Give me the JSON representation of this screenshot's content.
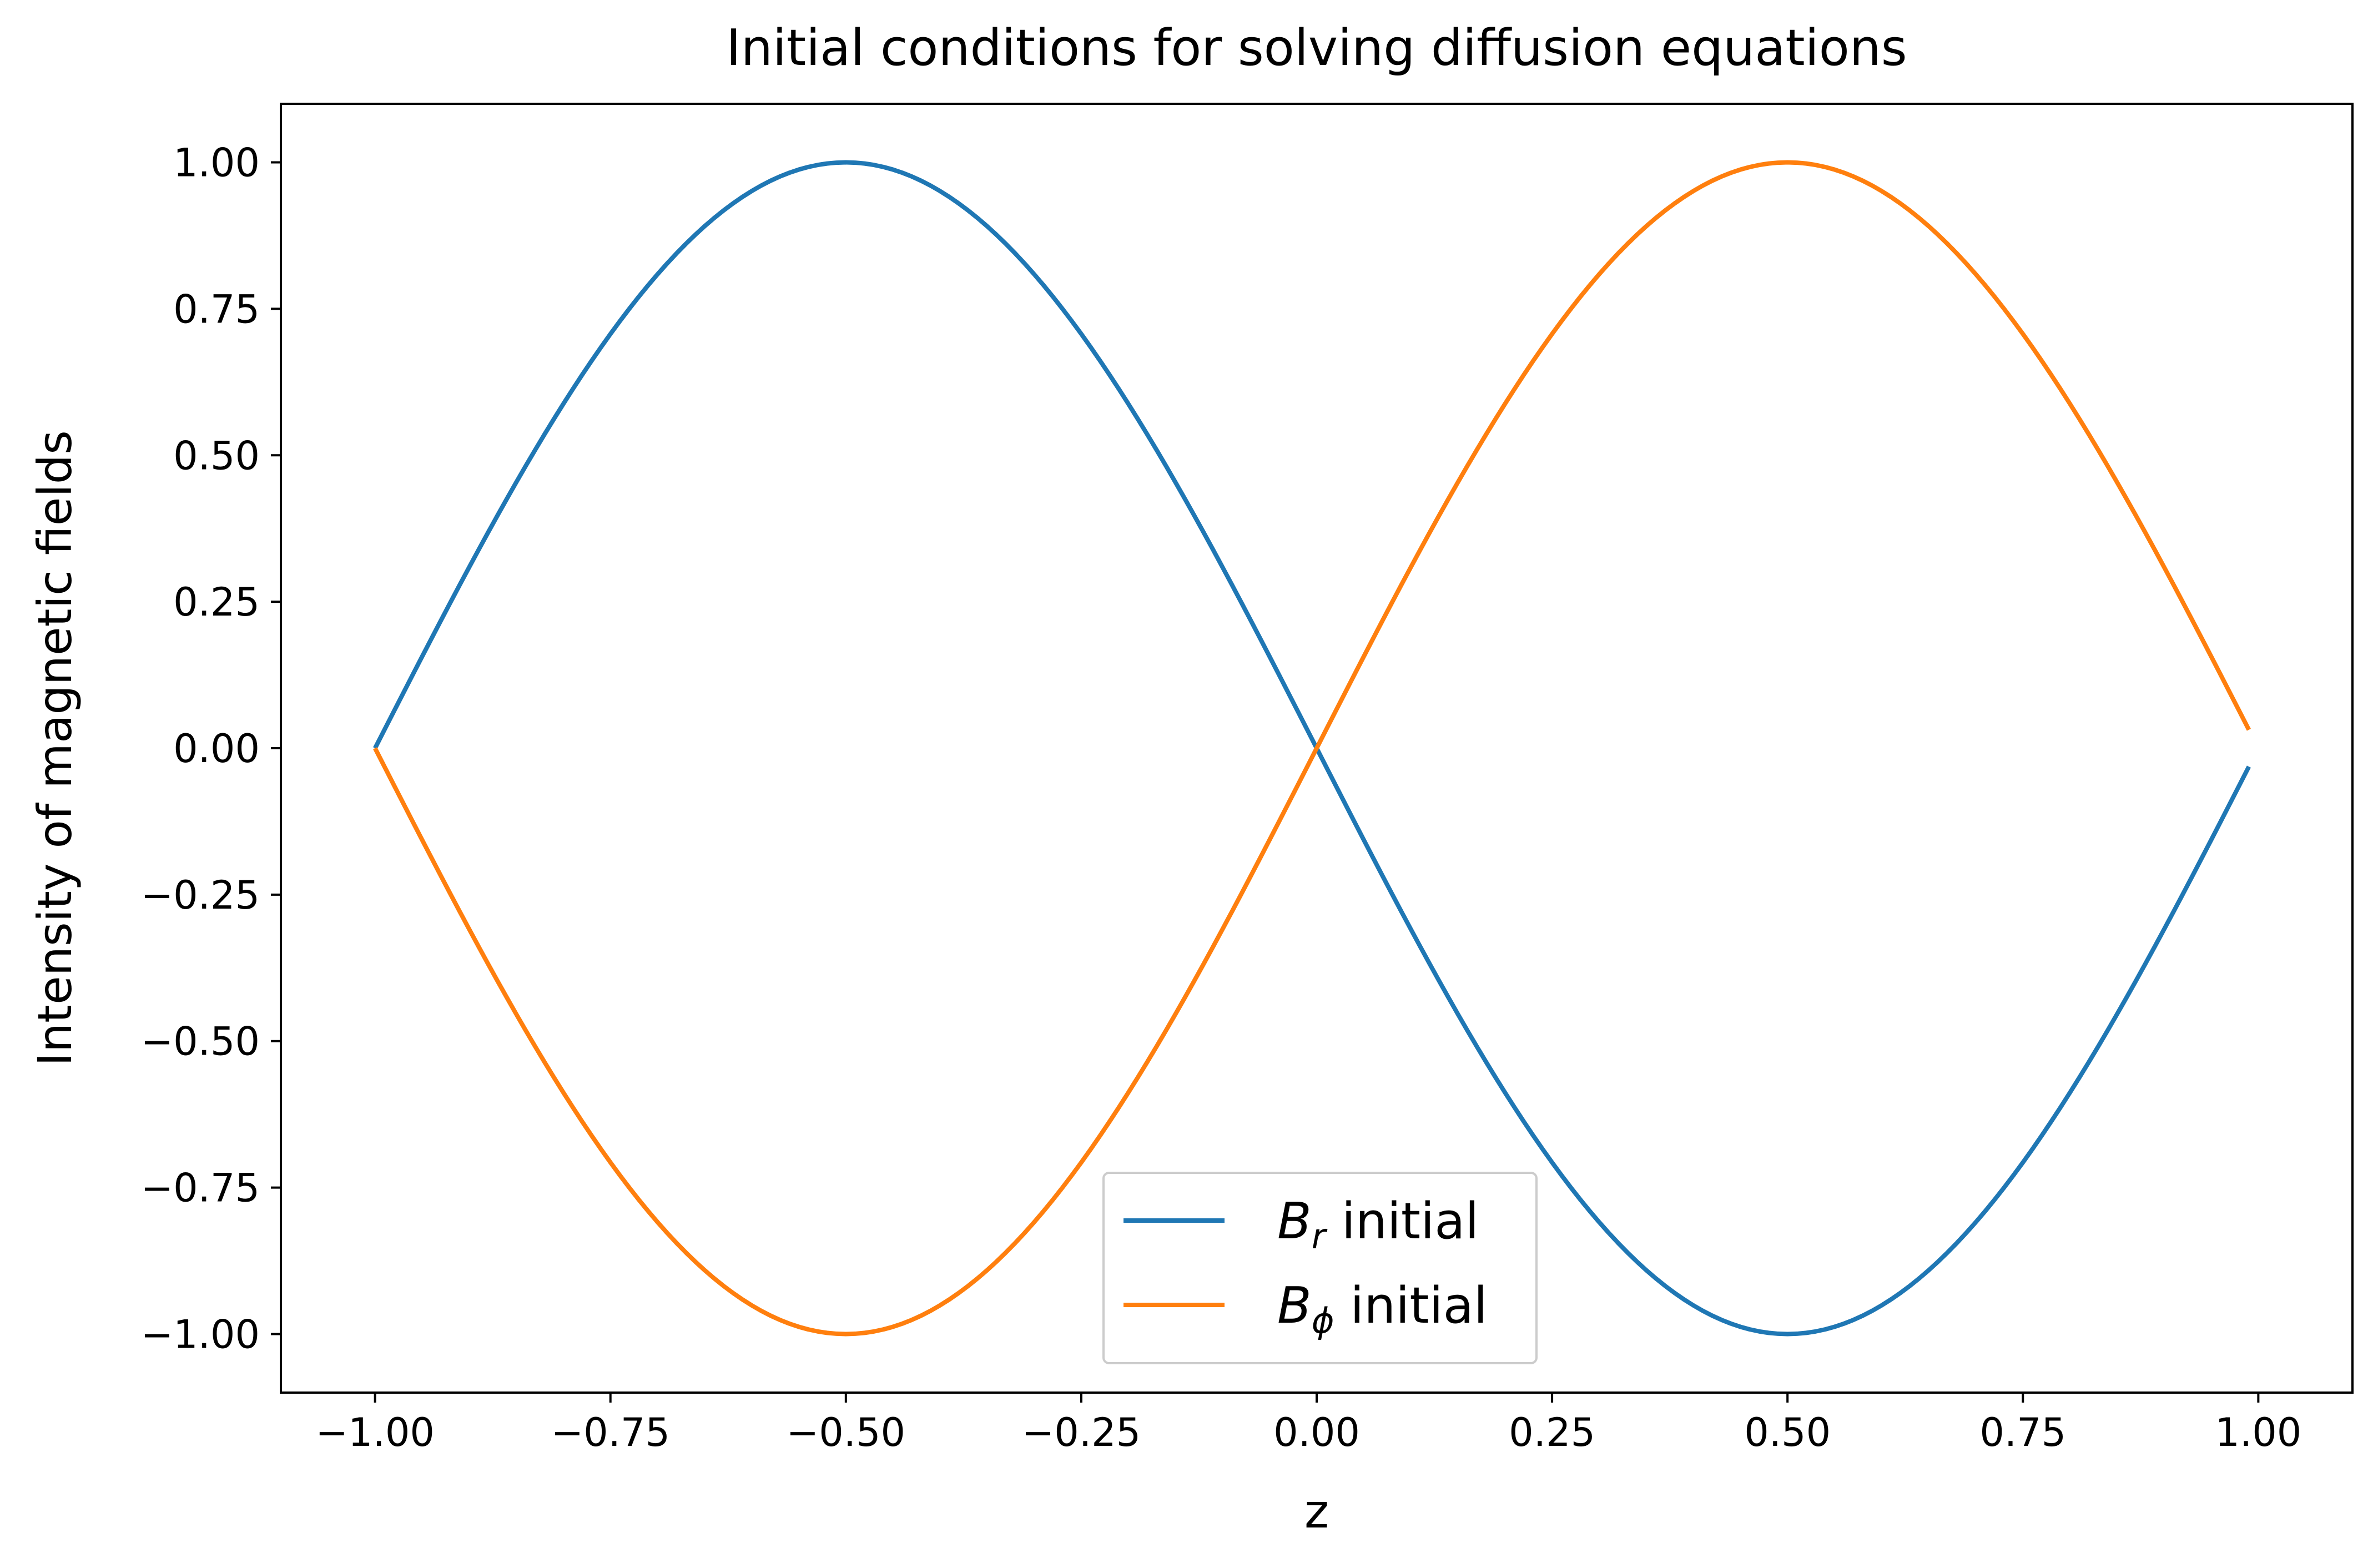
{
  "chart_data": {
    "type": "line",
    "title": "Initial conditions for solving diffusion equations",
    "xlabel": "z",
    "ylabel": "Intensity of magnetic fields",
    "xlim": [
      -1.1,
      1.1
    ],
    "ylim": [
      -1.1,
      1.1
    ],
    "xticks": [
      -1.0,
      -0.75,
      -0.5,
      -0.25,
      0.0,
      0.25,
      0.5,
      0.75,
      1.0
    ],
    "xtick_labels": [
      "−1.00",
      "−0.75",
      "−0.50",
      "−0.25",
      "0.00",
      "0.25",
      "0.50",
      "0.75",
      "1.00"
    ],
    "yticks": [
      1.0,
      0.75,
      0.5,
      0.25,
      0.0,
      -0.25,
      -0.5,
      -0.75,
      -1.0
    ],
    "ytick_labels": [
      "1.00",
      "0.75",
      "0.50",
      "0.25",
      "0.00",
      "−0.25",
      "−0.50",
      "−0.75",
      "−1.00"
    ],
    "grid": false,
    "legend_position": "lower center",
    "x_range": [
      -1.0,
      0.99
    ],
    "samples": 200,
    "series": [
      {
        "name": "B_r initial",
        "label_base": "B",
        "label_sub": "r",
        "label_suffix": " initial",
        "function": "-sin(pi*z)",
        "color": "#1f77b4"
      },
      {
        "name": "B_phi initial",
        "label_base": "B",
        "label_sub": "ϕ",
        "label_suffix": " initial",
        "function": "sin(pi*z)",
        "color": "#ff7f0e"
      }
    ]
  }
}
